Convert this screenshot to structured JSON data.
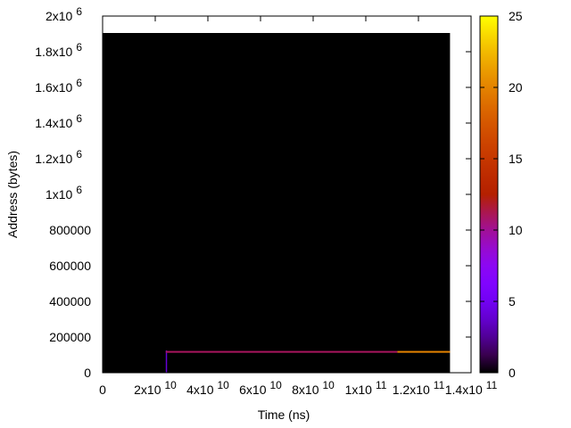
{
  "chart_data": {
    "type": "heatmap",
    "x_label": "Time (ns)",
    "y_label": "Address (bytes)",
    "xlim": [
      0,
      140000000000
    ],
    "ylim": [
      0,
      2000000
    ],
    "cblim": [
      0,
      25
    ],
    "xticks": [
      0,
      {
        "value": 20000000000,
        "label": "2x10",
        "exp": "10"
      },
      {
        "value": 40000000000,
        "label": "4x10",
        "exp": "10"
      },
      {
        "value": 60000000000,
        "label": "6x10",
        "exp": "10"
      },
      {
        "value": 80000000000,
        "label": "8x10",
        "exp": "10"
      },
      {
        "value": 100000000000,
        "label": "1x10",
        "exp": "11"
      },
      {
        "value": 120000000000,
        "label": "1.2x10",
        "exp": "11"
      },
      {
        "value": 140000000000,
        "label": "1.4x10",
        "exp": "11"
      }
    ],
    "yticks": [
      0,
      200000,
      400000,
      600000,
      800000,
      {
        "value": 1000000,
        "label": "1x10",
        "exp": "6"
      },
      {
        "value": 1200000,
        "label": "1.2x10",
        "exp": "6"
      },
      {
        "value": 1400000,
        "label": "1.4x10",
        "exp": "6"
      },
      {
        "value": 1600000,
        "label": "1.6x10",
        "exp": "6"
      },
      {
        "value": 1800000,
        "label": "1.8x10",
        "exp": "6"
      },
      {
        "value": 2000000,
        "label": "2x10",
        "exp": "6"
      }
    ],
    "cbticks": [
      0,
      5,
      10,
      15,
      20,
      25
    ],
    "palette": "black-blue-red-yellow",
    "cells": [
      {
        "x": [
          0,
          132000000000
        ],
        "y": [
          0,
          1905000
        ],
        "value": 0
      },
      {
        "x": [
          24000000000,
          24500000000
        ],
        "y": [
          0,
          125000
        ],
        "value": 4
      },
      {
        "x": [
          24000000000,
          112000000000
        ],
        "y": [
          112000,
          122000
        ],
        "value": 11
      },
      {
        "x": [
          112000000000,
          132000000000
        ],
        "y": [
          112000,
          122000
        ],
        "value": 20
      }
    ]
  }
}
